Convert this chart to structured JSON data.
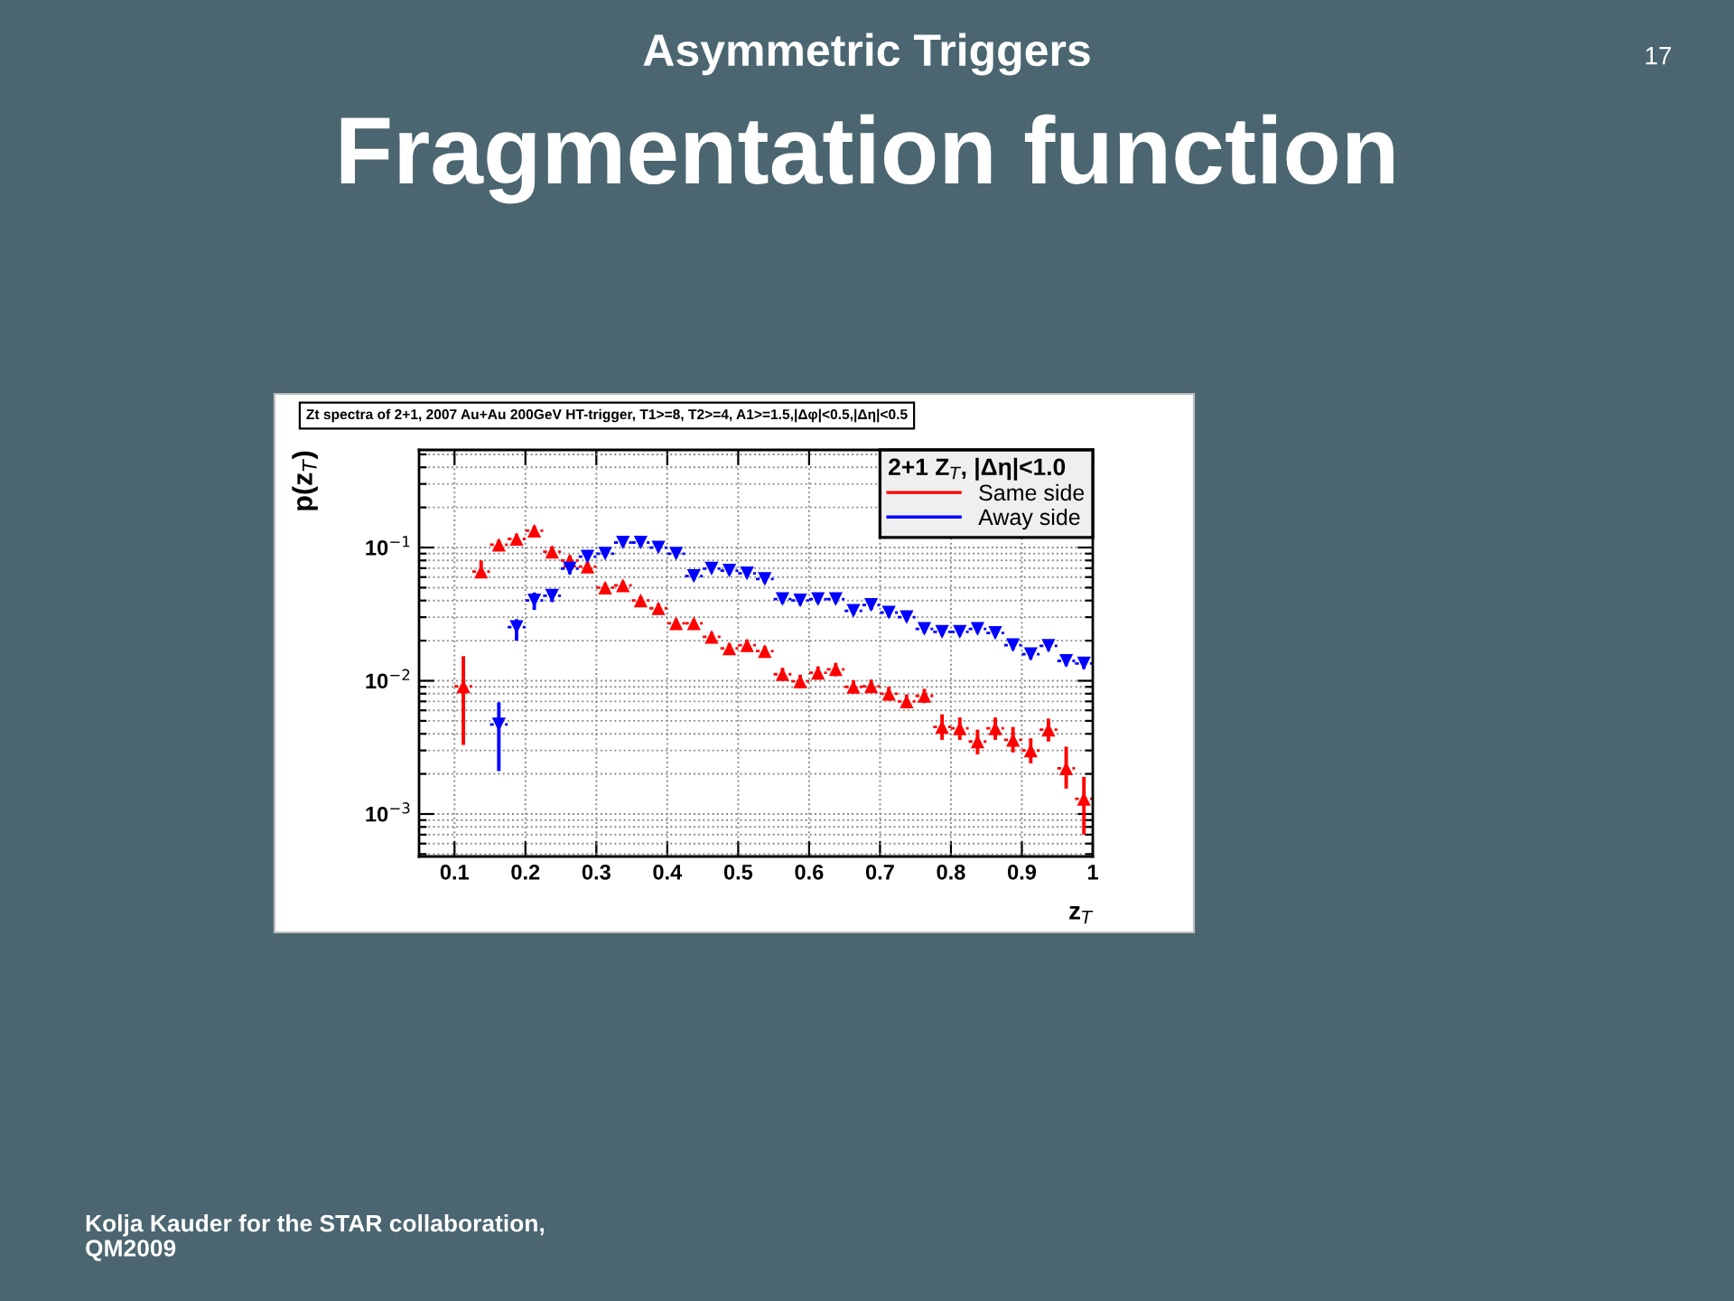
{
  "chart_data": {
    "type": "scatter",
    "title": "Fragmentation function",
    "subtitle": "Asymmetric Triggers",
    "xlabel": "z$_{T}$",
    "ylabel": "p(z$_{T}$)",
    "legend_title": "2+1 Z$_{T}$, |Δη|<1.0",
    "annotations": [
      "Zt spectra of 2+1, 2007 Au+Au 200GeV HT-trigger, T1>=8, T2>=4, A1>=1.5,|Δφ|<0.5,|Δη|<0.5",
      "17",
      "Kolja Kauder for the STAR collaboration,\nQM2009"
    ],
    "log": "y",
    "xlim": [
      0.05,
      1.0
    ],
    "xticks": [
      0.1,
      0.2,
      0.3,
      0.4,
      0.5,
      0.6,
      0.7,
      0.8,
      0.9,
      1
    ],
    "ylim": [
      0.00048,
      0.54
    ],
    "yticks": [
      {
        "value": 0.001,
        "label": "10$^{−3}$"
      },
      {
        "value": 0.01,
        "label": "10$^{−2}$"
      },
      {
        "value": 0.1,
        "label": "10$^{−1}$"
      }
    ],
    "grid": true,
    "legend": "top right",
    "series": [
      {
        "name": "Same side",
        "color": "#ff0000",
        "marker": "triangle",
        "x": [
          0.1125,
          0.1375,
          0.1625,
          0.1875,
          0.2125,
          0.2375,
          0.2625,
          0.2875,
          0.3125,
          0.3375,
          0.3625,
          0.3875,
          0.4125,
          0.4375,
          0.4625,
          0.4875,
          0.5125,
          0.5375,
          0.5625,
          0.5875,
          0.6125,
          0.6375,
          0.6625,
          0.6875,
          0.7125,
          0.7375,
          0.7625,
          0.7875,
          0.8125,
          0.8375,
          0.8625,
          0.8875,
          0.9125,
          0.9375,
          0.9625,
          0.9875
        ],
        "values": [
          0.0091,
          0.066,
          0.105,
          0.116,
          0.134,
          0.093,
          0.08,
          0.072,
          0.05,
          0.052,
          0.04,
          0.035,
          0.027,
          0.027,
          0.0214,
          0.0175,
          0.0185,
          0.0167,
          0.0112,
          0.0099,
          0.0115,
          0.0122,
          0.009,
          0.0091,
          0.008,
          0.007,
          0.0077,
          0.0045,
          0.0044,
          0.0035,
          0.0044,
          0.0036,
          0.003,
          0.0043,
          0.0022,
          0.0013
        ],
        "errors": [
          [
            0.0033,
            0.0153
          ],
          [
            0.06,
            0.08
          ],
          [
            0.097,
            0.114
          ],
          [
            0.107,
            0.126
          ],
          [
            0.124,
            0.145
          ],
          [
            0.086,
            0.101
          ],
          [
            0.073,
            0.087
          ],
          [
            0.066,
            0.078
          ],
          [
            0.046,
            0.054
          ],
          [
            0.048,
            0.056
          ],
          [
            0.037,
            0.043
          ],
          [
            0.032,
            0.038
          ],
          [
            0.025,
            0.029
          ],
          [
            0.025,
            0.029
          ],
          [
            0.0197,
            0.0232
          ],
          [
            0.016,
            0.019
          ],
          [
            0.0168,
            0.0202
          ],
          [
            0.0152,
            0.0182
          ],
          [
            0.01,
            0.0125
          ],
          [
            0.0088,
            0.0111
          ],
          [
            0.0102,
            0.0128
          ],
          [
            0.0108,
            0.0136
          ],
          [
            0.008,
            0.0101
          ],
          [
            0.0081,
            0.0102
          ],
          [
            0.0071,
            0.009
          ],
          [
            0.0062,
            0.0079
          ],
          [
            0.0068,
            0.0087
          ],
          [
            0.0036,
            0.0056
          ],
          [
            0.0036,
            0.0053
          ],
          [
            0.0028,
            0.0043
          ],
          [
            0.0036,
            0.0053
          ],
          [
            0.0029,
            0.0045
          ],
          [
            0.0024,
            0.0037
          ],
          [
            0.0035,
            0.0052
          ],
          [
            0.00155,
            0.0032
          ],
          [
            0.0007,
            0.0019
          ]
        ],
        "xerrors": [
          0.0125,
          0.0125,
          0.0125,
          0.0125,
          0.0125,
          0.0125,
          0.0125,
          0.0125,
          0.0125,
          0.0125,
          0.0125,
          0.0125,
          0.0125,
          0.0125,
          0.0125,
          0.0125,
          0.0125,
          0.0125,
          0.0125,
          0.0125,
          0.0125,
          0.0125,
          0.0125,
          0.0125,
          0.0125,
          0.0125,
          0.0125,
          0.0125,
          0.0125,
          0.0125,
          0.0125,
          0.0125,
          0.0125,
          0.0125,
          0.0125,
          0.0125
        ]
      },
      {
        "name": "Away side",
        "color": "#0000ff",
        "marker": "triangle-down",
        "x": [
          0.1625,
          0.1875,
          0.2125,
          0.2375,
          0.2625,
          0.2875,
          0.3125,
          0.3375,
          0.3625,
          0.3875,
          0.4125,
          0.4375,
          0.4625,
          0.4875,
          0.5125,
          0.5375,
          0.5625,
          0.5875,
          0.6125,
          0.6375,
          0.6625,
          0.6875,
          0.7125,
          0.7375,
          0.7625,
          0.7875,
          0.8125,
          0.8375,
          0.8625,
          0.8875,
          0.9125,
          0.9375,
          0.9625,
          0.9875
        ],
        "values": [
          0.0047,
          0.0253,
          0.04,
          0.0435,
          0.0695,
          0.0855,
          0.09,
          0.109,
          0.109,
          0.1,
          0.09,
          0.061,
          0.0695,
          0.067,
          0.064,
          0.058,
          0.041,
          0.04,
          0.041,
          0.041,
          0.0335,
          0.037,
          0.0325,
          0.03,
          0.0245,
          0.0233,
          0.0233,
          0.0245,
          0.0228,
          0.0185,
          0.0158,
          0.0183,
          0.0141,
          0.0135
        ],
        "errors": [
          [
            0.0021,
            0.0069
          ],
          [
            0.02,
            0.029
          ],
          [
            0.034,
            0.046
          ],
          [
            0.039,
            0.048
          ],
          [
            0.063,
            0.076
          ],
          [
            0.079,
            0.092
          ],
          [
            0.084,
            0.096
          ],
          [
            0.102,
            0.116
          ],
          [
            0.102,
            0.116
          ],
          [
            0.094,
            0.106
          ],
          [
            0.084,
            0.096
          ],
          [
            0.057,
            0.065
          ],
          [
            0.065,
            0.074
          ],
          [
            0.063,
            0.071
          ],
          [
            0.06,
            0.068
          ],
          [
            0.054,
            0.062
          ],
          [
            0.038,
            0.044
          ],
          [
            0.037,
            0.043
          ],
          [
            0.038,
            0.044
          ],
          [
            0.038,
            0.044
          ],
          [
            0.031,
            0.036
          ],
          [
            0.034,
            0.04
          ],
          [
            0.03,
            0.035
          ],
          [
            0.028,
            0.032
          ],
          [
            0.0228,
            0.0262
          ],
          [
            0.0217,
            0.0249
          ],
          [
            0.0217,
            0.0249
          ],
          [
            0.0228,
            0.0262
          ],
          [
            0.0212,
            0.0244
          ],
          [
            0.017,
            0.02
          ],
          [
            0.0145,
            0.0171
          ],
          [
            0.0168,
            0.0198
          ],
          [
            0.0129,
            0.0153
          ],
          [
            0.0123,
            0.0147
          ]
        ],
        "xerrors": [
          0.0125,
          0.0125,
          0.0125,
          0.0125,
          0.0125,
          0.0125,
          0.0125,
          0.0125,
          0.0125,
          0.0125,
          0.0125,
          0.0125,
          0.0125,
          0.0125,
          0.0125,
          0.0125,
          0.0125,
          0.0125,
          0.0125,
          0.0125,
          0.0125,
          0.0125,
          0.0125,
          0.0125,
          0.0125,
          0.0125,
          0.0125,
          0.0125,
          0.0125,
          0.0125,
          0.0125,
          0.0125,
          0.0125,
          0.0125
        ]
      }
    ]
  }
}
